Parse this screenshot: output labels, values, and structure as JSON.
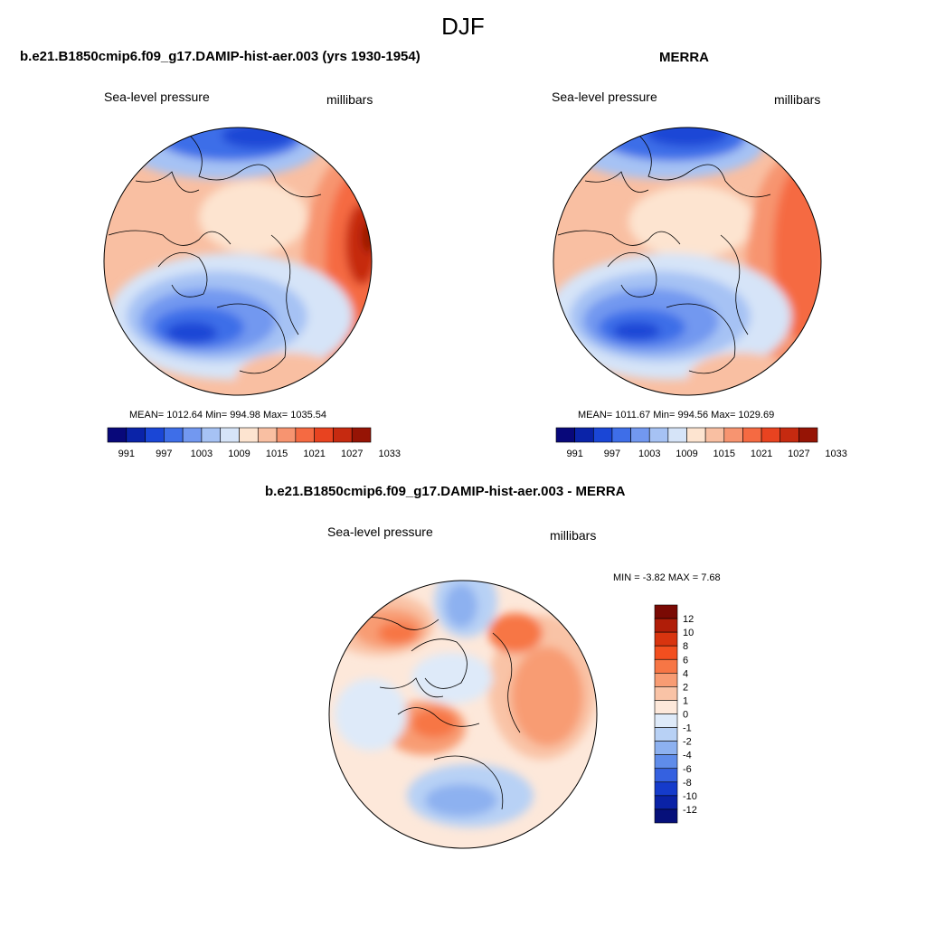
{
  "main_title": "DJF",
  "panels": [
    {
      "id": "model",
      "title": "b.e21.B1850cmip6.f09_g17.DAMIP-hist-aer.003 (yrs 1930-1954)",
      "left_label": "Sea-level pressure",
      "right_label": "millibars",
      "stats": "MEAN= 1012.64  Min= 994.98  Max= 1035.54"
    },
    {
      "id": "merra",
      "title": "MERRA",
      "left_label": "Sea-level pressure",
      "right_label": "millibars",
      "stats": "MEAN= 1011.67  Min= 994.56  Max= 1029.69"
    },
    {
      "id": "diff",
      "title": "b.e21.B1850cmip6.f09_g17.DAMIP-hist-aer.003 - MERRA",
      "left_label": "Sea-level pressure",
      "right_label": "millibars",
      "stats": "MIN =  -3.82 MAX =   7.68"
    }
  ],
  "chart_data": [
    {
      "type": "heatmap",
      "projection": "polar-stereographic-north",
      "variable": "Sea-level pressure",
      "units": "millibars",
      "title": "b.e21.B1850cmip6.f09_g17.DAMIP-hist-aer.003 (yrs 1930-1954)",
      "mean": 1012.64,
      "min": 994.98,
      "max": 1035.54,
      "colorbar_ticks": [
        "991",
        "997",
        "1003",
        "1009",
        "1015",
        "1021",
        "1027",
        "1033"
      ],
      "colorbar_colors": [
        "#08087a",
        "#0a23a8",
        "#1a46d6",
        "#3e6ee8",
        "#7298f0",
        "#a6c2f4",
        "#d6e4f8",
        "#fde4d0",
        "#f9bfa2",
        "#f79470",
        "#f56a42",
        "#e84320",
        "#c62a10",
        "#961405"
      ]
    },
    {
      "type": "heatmap",
      "projection": "polar-stereographic-north",
      "variable": "Sea-level pressure",
      "units": "millibars",
      "title": "MERRA",
      "mean": 1011.67,
      "min": 994.56,
      "max": 1029.69,
      "colorbar_ticks": [
        "991",
        "997",
        "1003",
        "1009",
        "1015",
        "1021",
        "1027",
        "1033"
      ],
      "colorbar_colors": [
        "#08087a",
        "#0a23a8",
        "#1a46d6",
        "#3e6ee8",
        "#7298f0",
        "#a6c2f4",
        "#d6e4f8",
        "#fde4d0",
        "#f9bfa2",
        "#f79470",
        "#f56a42",
        "#e84320",
        "#c62a10",
        "#961405"
      ]
    },
    {
      "type": "heatmap",
      "projection": "polar-stereographic-north",
      "variable": "Sea-level pressure",
      "units": "millibars",
      "title": "b.e21.B1850cmip6.f09_g17.DAMIP-hist-aer.003 - MERRA",
      "min": -3.82,
      "max": 7.68,
      "colorbar_ticks": [
        "12",
        "10",
        "8",
        "6",
        "4",
        "2",
        "1",
        "0",
        "-1",
        "-2",
        "-4",
        "-6",
        "-8",
        "-10",
        "-12"
      ],
      "colorbar_colors": [
        "#7a0a04",
        "#b01d08",
        "#d8340f",
        "#f24f1f",
        "#f77645",
        "#f89c73",
        "#f9c3a6",
        "#fde8da",
        "#deeaf9",
        "#b8d1f5",
        "#8db1f0",
        "#5f8cea",
        "#3561e0",
        "#153bcb",
        "#0a22a6",
        "#06107a"
      ]
    }
  ]
}
